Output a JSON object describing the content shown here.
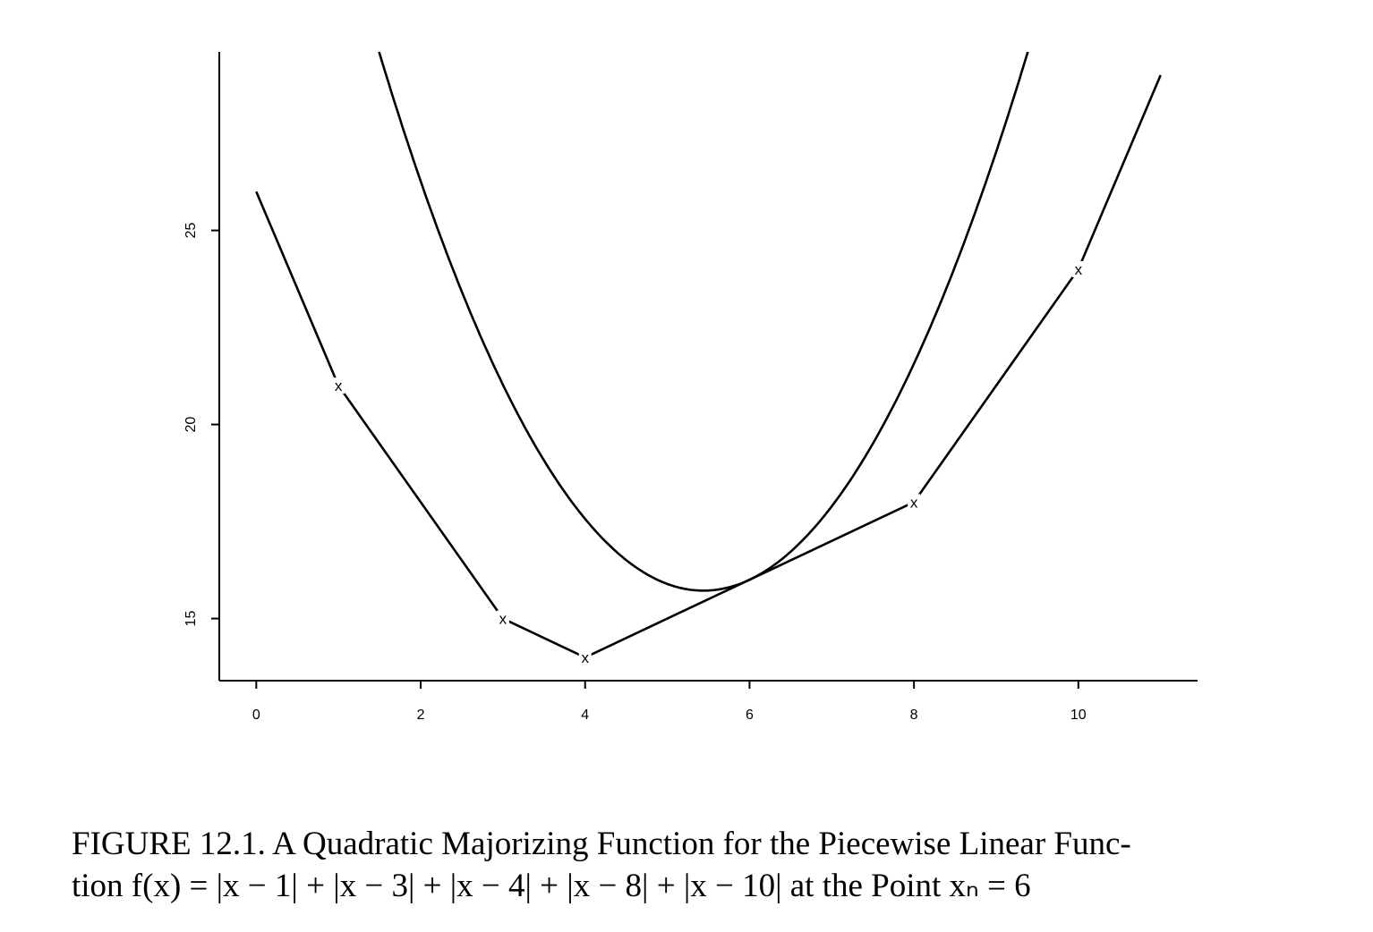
{
  "chart_data": {
    "type": "line",
    "x_ticks": [
      "0",
      "2",
      "4",
      "6",
      "8",
      "10"
    ],
    "y_ticks": [
      "15",
      "20",
      "25"
    ],
    "series": [
      {
        "x": [
          0,
          1,
          3,
          4,
          8,
          10,
          11
        ],
        "y": [
          26,
          21,
          15,
          14,
          18,
          24,
          29
        ]
      },
      {
        "expression": "f(x) majorized at x_n = 6 by sum over points of ((x-p)^2 + (6-p)^2) / (2|6-p|)",
        "points": [
          1,
          3,
          4,
          8,
          10
        ],
        "x_n": 6,
        "x_range": [
          1.4,
          9.5
        ]
      }
    ],
    "markers": [
      {
        "x": 1,
        "y": 21,
        "label": "x"
      },
      {
        "x": 3,
        "y": 15,
        "label": "x"
      },
      {
        "x": 4,
        "y": 14,
        "label": "x"
      },
      {
        "x": 8,
        "y": 18,
        "label": "x"
      },
      {
        "x": 10,
        "y": 24,
        "label": "x"
      }
    ],
    "xlim": [
      -0.45,
      11.45
    ],
    "ylim": [
      13.4,
      29.6
    ]
  },
  "caption": {
    "line1": "FIGURE 12.1. A Quadratic Majorizing Function for the Piecewise Linear Func-",
    "line2": "tion f(x) = |x − 1| + |x − 3| + |x − 4| + |x − 8| + |x − 10| at the Point xₙ = 6"
  }
}
